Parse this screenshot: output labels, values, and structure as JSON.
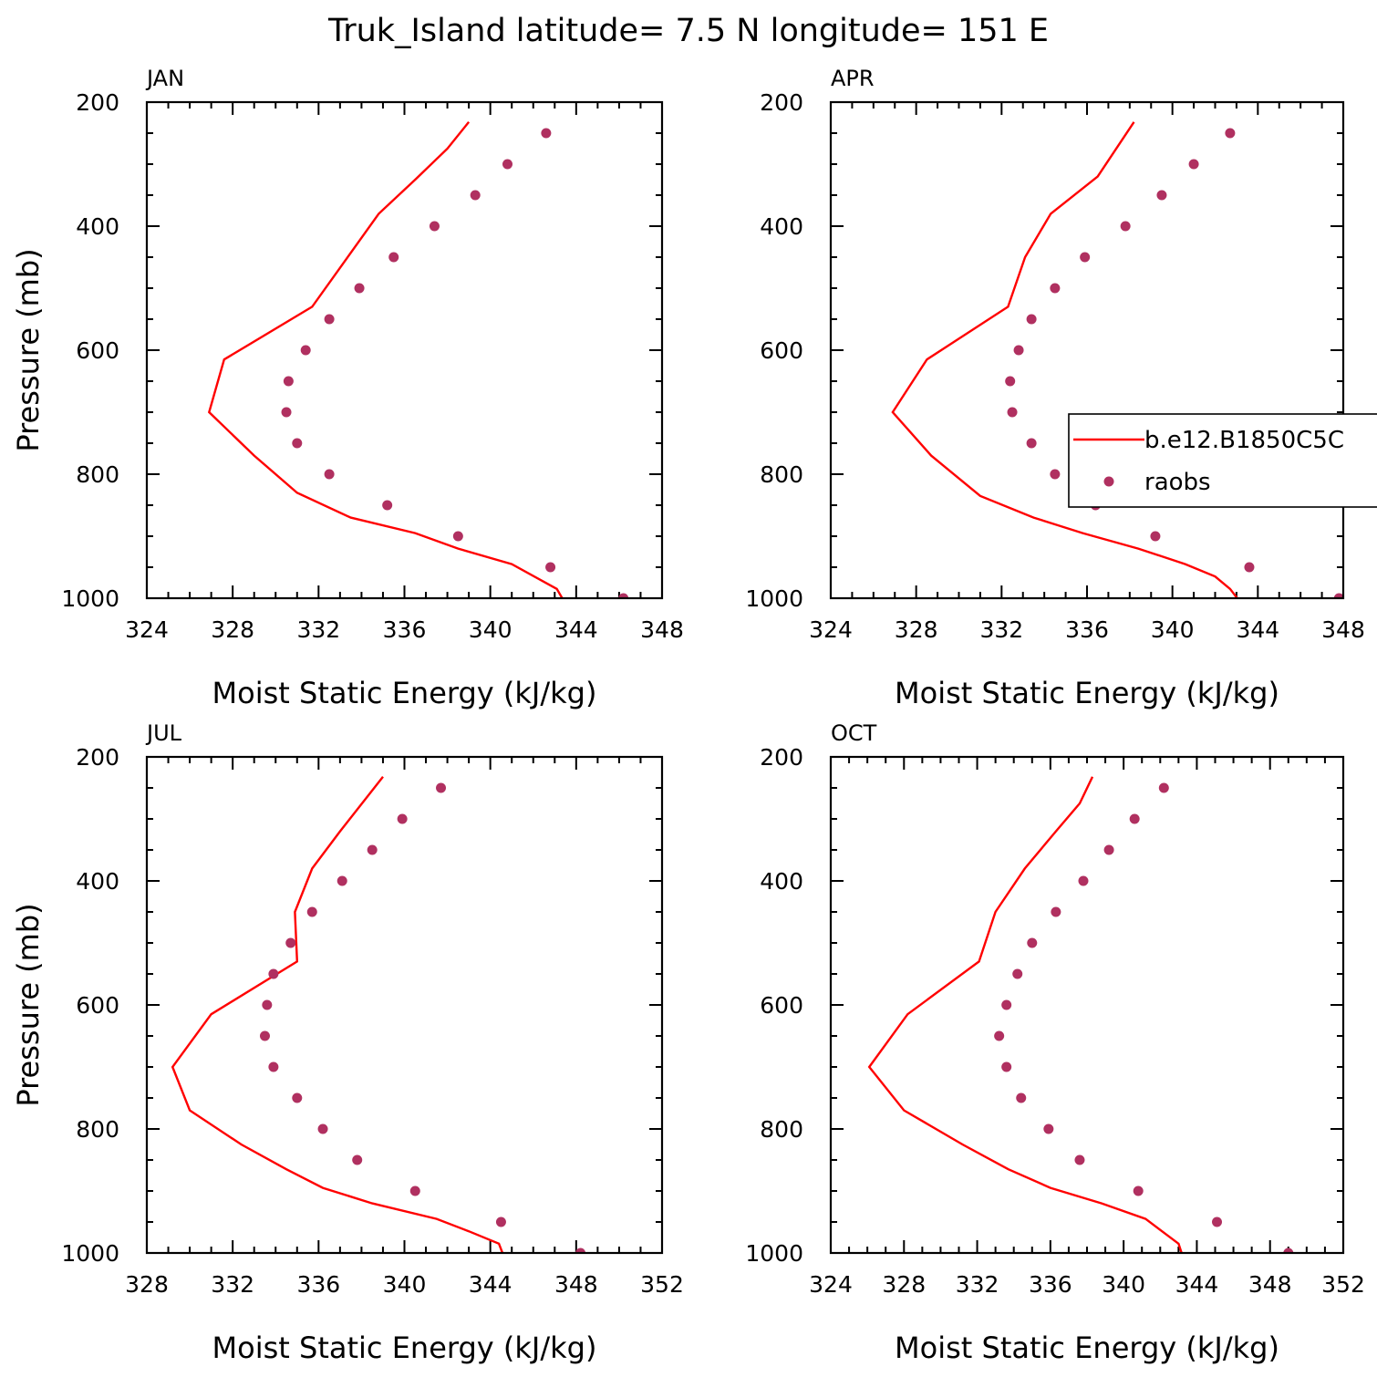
{
  "title": "Truk_Island  latitude= 7.5 N longitude= 151 E",
  "colors": {
    "model": "#ff0000",
    "obs": "#b03060",
    "axes": "#000000"
  },
  "legend": {
    "placement": "right, APR panel",
    "model_label": "b.e12.B1850C5C",
    "obs_label": "raobs"
  },
  "chart_data": [
    {
      "type": "line",
      "panel": "JAN",
      "xlabel": "Moist Static Energy (kJ/kg)",
      "ylabel": "Pressure (mb)",
      "xlim": [
        324,
        348
      ],
      "ylim": [
        1000,
        200
      ],
      "xticks": [
        "324",
        "328",
        "332",
        "336",
        "340",
        "344",
        "348"
      ],
      "yticks": [
        "200",
        "400",
        "600",
        "800",
        "1000"
      ],
      "series": [
        {
          "name": "b.e12.B1850C5C",
          "style": "line",
          "x": [
            343.4,
            343.1,
            341.0,
            338.5,
            336.5,
            333.5,
            331.0,
            329.0,
            326.9,
            327.6,
            331.7,
            334.8,
            336.5,
            338.0,
            339.0
          ],
          "y": [
            1003,
            985,
            945,
            920,
            895,
            870,
            830,
            770,
            700,
            615,
            530,
            380,
            325,
            275,
            232
          ]
        },
        {
          "name": "raobs",
          "style": "scatter",
          "x": [
            346.2,
            342.8,
            338.5,
            335.2,
            332.5,
            331.0,
            330.5,
            330.6,
            331.4,
            332.5,
            333.9,
            335.5,
            337.4,
            339.3,
            340.8,
            342.6
          ],
          "y": [
            1000,
            950,
            900,
            850,
            800,
            750,
            700,
            650,
            600,
            550,
            500,
            450,
            400,
            350,
            300,
            250
          ]
        }
      ]
    },
    {
      "type": "line",
      "panel": "APR",
      "xlabel": "Moist Static Energy (kJ/kg)",
      "ylabel": "",
      "xlim": [
        324,
        348
      ],
      "ylim": [
        1000,
        200
      ],
      "xticks": [
        "324",
        "328",
        "332",
        "336",
        "340",
        "344",
        "348"
      ],
      "yticks": [
        "200",
        "400",
        "600",
        "800",
        "1000"
      ],
      "series": [
        {
          "name": "b.e12.B1850C5C",
          "style": "line",
          "x": [
            343.1,
            342.7,
            342.0,
            340.6,
            338.4,
            335.8,
            333.5,
            331.0,
            328.7,
            326.9,
            328.5,
            332.3,
            333.1,
            334.3,
            336.5,
            338.2
          ],
          "y": [
            1003,
            985,
            965,
            945,
            920,
            895,
            870,
            835,
            770,
            700,
            615,
            530,
            450,
            380,
            320,
            232
          ]
        },
        {
          "name": "raobs",
          "style": "scatter",
          "x": [
            347.8,
            343.6,
            339.2,
            336.4,
            334.5,
            333.4,
            332.5,
            332.4,
            332.8,
            333.4,
            334.5,
            335.9,
            337.8,
            339.5,
            341.0,
            342.7
          ],
          "y": [
            1000,
            950,
            900,
            850,
            800,
            750,
            700,
            650,
            600,
            550,
            500,
            450,
            400,
            350,
            300,
            250
          ]
        }
      ]
    },
    {
      "type": "line",
      "panel": "JUL",
      "xlabel": "Moist Static Energy (kJ/kg)",
      "ylabel": "Pressure (mb)",
      "xlim": [
        328,
        352
      ],
      "ylim": [
        1000,
        200
      ],
      "xticks": [
        "328",
        "332",
        "336",
        "340",
        "344",
        "348",
        "352"
      ],
      "yticks": [
        "200",
        "400",
        "600",
        "800",
        "1000"
      ],
      "series": [
        {
          "name": "b.e12.B1850C5C",
          "style": "line",
          "x": [
            344.6,
            344.4,
            343.0,
            341.5,
            338.5,
            336.2,
            334.5,
            332.4,
            330.0,
            329.2,
            331.0,
            335.0,
            334.9,
            335.7,
            337.0,
            339.0
          ],
          "y": [
            1003,
            985,
            965,
            945,
            920,
            895,
            865,
            825,
            770,
            700,
            615,
            530,
            450,
            380,
            320,
            232
          ]
        },
        {
          "name": "raobs",
          "style": "scatter",
          "x": [
            348.2,
            344.5,
            340.5,
            337.8,
            336.2,
            335.0,
            333.9,
            333.5,
            333.6,
            333.9,
            334.7,
            335.7,
            337.1,
            338.5,
            339.9,
            341.7
          ],
          "y": [
            1000,
            950,
            900,
            850,
            800,
            750,
            700,
            650,
            600,
            550,
            500,
            450,
            400,
            350,
            300,
            250
          ]
        }
      ]
    },
    {
      "type": "line",
      "panel": "OCT",
      "xlabel": "Moist Static Energy (kJ/kg)",
      "ylabel": "",
      "xlim": [
        324,
        352
      ],
      "ylim": [
        1000,
        200
      ],
      "xticks": [
        "324",
        "328",
        "332",
        "336",
        "340",
        "344",
        "348",
        "352"
      ],
      "yticks": [
        "200",
        "400",
        "600",
        "800",
        "1000"
      ],
      "series": [
        {
          "name": "b.e12.B1850C5C",
          "style": "line",
          "x": [
            343.2,
            343.0,
            341.2,
            338.8,
            336.0,
            333.7,
            331.2,
            328.0,
            326.1,
            328.2,
            332.1,
            333.0,
            334.6,
            336.3,
            337.6,
            338.3
          ],
          "y": [
            1003,
            985,
            945,
            920,
            895,
            865,
            825,
            770,
            700,
            615,
            530,
            450,
            380,
            320,
            275,
            232
          ]
        },
        {
          "name": "raobs",
          "style": "scatter",
          "x": [
            349.0,
            345.1,
            340.8,
            337.6,
            335.9,
            334.4,
            333.6,
            333.2,
            333.6,
            334.2,
            335.0,
            336.3,
            337.8,
            339.2,
            340.6,
            342.2
          ],
          "y": [
            1000,
            950,
            900,
            850,
            800,
            750,
            700,
            650,
            600,
            550,
            500,
            450,
            400,
            350,
            300,
            250
          ]
        }
      ]
    }
  ]
}
